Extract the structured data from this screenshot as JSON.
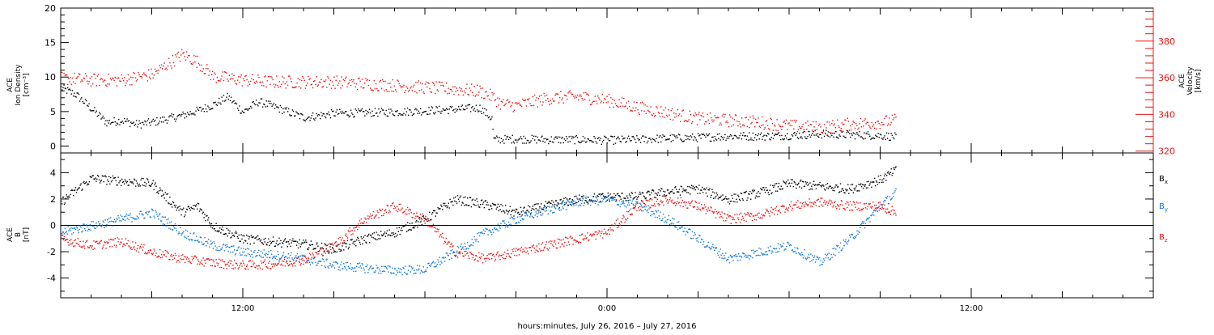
{
  "xaxis": {
    "label": "hours:minutes, July 26, 2016 – July 27, 2016",
    "range_hours": [
      6,
      42
    ],
    "major_ticks": [
      {
        "h": 12,
        "label": "12:00"
      },
      {
        "h": 24,
        "label": "0:00"
      },
      {
        "h": 36,
        "label": "12:00"
      }
    ]
  },
  "colors": {
    "black": "#000000",
    "red": "#ee1111",
    "blue": "#0f78dc"
  },
  "chart_data": [
    {
      "type": "scatter",
      "panel": "top",
      "ylabel_left": [
        "ACE",
        "Ion Density",
        "[cm⁻³]"
      ],
      "ylabel_right": [
        "ACE",
        "Velocity",
        "[km/s]"
      ],
      "y_left_ticks": [
        "0",
        "5",
        "10",
        "15",
        "20"
      ],
      "ylim_left": [
        -1,
        20
      ],
      "y_right_ticks": [
        "320",
        "340",
        "360",
        "380"
      ],
      "ylim_right": [
        319,
        398
      ],
      "series": [
        {
          "key": "density",
          "axis": "left",
          "color": "black",
          "points": [
            [
              6.0,
              8.5
            ],
            [
              6.5,
              7.5
            ],
            [
              7.0,
              5.5
            ],
            [
              7.5,
              3.5
            ],
            [
              8.0,
              3.8
            ],
            [
              8.5,
              3.2
            ],
            [
              9.0,
              3.5
            ],
            [
              9.5,
              4.0
            ],
            [
              10.0,
              4.5
            ],
            [
              10.5,
              5.2
            ],
            [
              11.0,
              6.0
            ],
            [
              11.5,
              7.2
            ],
            [
              12.0,
              5.0
            ],
            [
              12.5,
              6.5
            ],
            [
              13.0,
              5.8
            ],
            [
              13.5,
              5.0
            ],
            [
              14.0,
              4.2
            ],
            [
              14.5,
              4.5
            ],
            [
              15.0,
              4.8
            ],
            [
              16.0,
              4.9
            ],
            [
              17.0,
              5.0
            ],
            [
              18.0,
              5.2
            ],
            [
              19.0,
              5.4
            ],
            [
              19.8,
              5.6
            ],
            [
              20.2,
              4.0
            ],
            [
              20.25,
              1.0
            ],
            [
              21.0,
              1.1
            ],
            [
              22.0,
              1.0
            ],
            [
              23.0,
              1.0
            ],
            [
              24.0,
              0.9
            ],
            [
              25.0,
              1.0
            ],
            [
              26.0,
              1.2
            ],
            [
              27.0,
              1.3
            ],
            [
              28.0,
              1.5
            ],
            [
              29.0,
              1.5
            ],
            [
              30.0,
              1.6
            ],
            [
              31.0,
              1.8
            ],
            [
              32.0,
              1.7
            ],
            [
              33.0,
              1.6
            ],
            [
              33.5,
              1.4
            ]
          ]
        },
        {
          "key": "velocity",
          "axis": "right",
          "color": "red",
          "points": [
            [
              6.0,
              360
            ],
            [
              7.0,
              359
            ],
            [
              8.0,
              359
            ],
            [
              9.0,
              362
            ],
            [
              10.0,
              373
            ],
            [
              10.5,
              369
            ],
            [
              11.0,
              361
            ],
            [
              12.0,
              359
            ],
            [
              13.0,
              358
            ],
            [
              14.0,
              358
            ],
            [
              15.0,
              358
            ],
            [
              16.0,
              357
            ],
            [
              17.0,
              356
            ],
            [
              18.0,
              355
            ],
            [
              19.0,
              354
            ],
            [
              19.8,
              353
            ],
            [
              20.2,
              350
            ],
            [
              20.5,
              346
            ],
            [
              21.0,
              345
            ],
            [
              22.0,
              349
            ],
            [
              23.0,
              350
            ],
            [
              24.0,
              348
            ],
            [
              25.0,
              344
            ],
            [
              26.0,
              341
            ],
            [
              27.0,
              338
            ],
            [
              28.0,
              337
            ],
            [
              29.0,
              336
            ],
            [
              30.0,
              334
            ],
            [
              31.0,
              333
            ],
            [
              32.0,
              335
            ],
            [
              33.0,
              336
            ],
            [
              33.5,
              337
            ]
          ]
        }
      ]
    },
    {
      "type": "scatter",
      "panel": "bottom",
      "ylabel_left": [
        "ACE",
        "B",
        "[nT]"
      ],
      "y_ticks": [
        "-4",
        "-2",
        "0",
        "2",
        "4"
      ],
      "ylim": [
        -5.5,
        5.5
      ],
      "zero_line": true,
      "series": [
        {
          "key": "bx",
          "name": "B",
          "sub": "x",
          "color": "black",
          "points": [
            [
              6.0,
              1.8
            ],
            [
              7.0,
              3.6
            ],
            [
              8.0,
              3.4
            ],
            [
              9.0,
              3.2
            ],
            [
              10.0,
              1.0
            ],
            [
              10.5,
              1.5
            ],
            [
              11.0,
              0.0
            ],
            [
              11.5,
              -0.5
            ],
            [
              12.0,
              -1.0
            ],
            [
              13.0,
              -1.2
            ],
            [
              14.0,
              -1.4
            ],
            [
              15.0,
              -1.8
            ],
            [
              16.0,
              -1.0
            ],
            [
              17.0,
              -0.5
            ],
            [
              18.0,
              0.5
            ],
            [
              19.0,
              2.0
            ],
            [
              20.0,
              1.6
            ],
            [
              21.0,
              1.0
            ],
            [
              22.0,
              1.5
            ],
            [
              23.0,
              2.0
            ],
            [
              24.0,
              2.2
            ],
            [
              25.0,
              2.2
            ],
            [
              26.0,
              2.6
            ],
            [
              27.0,
              2.8
            ],
            [
              28.0,
              2.0
            ],
            [
              29.0,
              2.5
            ],
            [
              30.0,
              3.2
            ],
            [
              31.0,
              3.0
            ],
            [
              32.0,
              2.8
            ],
            [
              33.0,
              3.5
            ],
            [
              33.5,
              4.2
            ]
          ]
        },
        {
          "key": "by",
          "name": "B",
          "sub": "y",
          "color": "blue",
          "points": [
            [
              6.0,
              -0.5
            ],
            [
              7.0,
              0.0
            ],
            [
              8.0,
              0.5
            ],
            [
              9.0,
              1.0
            ],
            [
              10.0,
              -0.5
            ],
            [
              11.0,
              -1.5
            ],
            [
              12.0,
              -2.0
            ],
            [
              13.0,
              -2.2
            ],
            [
              14.0,
              -2.5
            ],
            [
              15.0,
              -3.0
            ],
            [
              16.0,
              -3.2
            ],
            [
              17.0,
              -3.4
            ],
            [
              18.0,
              -3.3
            ],
            [
              19.0,
              -2.0
            ],
            [
              20.0,
              -0.5
            ],
            [
              21.0,
              0.5
            ],
            [
              22.0,
              1.2
            ],
            [
              23.0,
              1.8
            ],
            [
              24.0,
              2.0
            ],
            [
              25.0,
              1.5
            ],
            [
              26.0,
              0.5
            ],
            [
              27.0,
              -1.0
            ],
            [
              28.0,
              -2.5
            ],
            [
              29.0,
              -2.0
            ],
            [
              30.0,
              -1.5
            ],
            [
              31.0,
              -2.8
            ],
            [
              32.0,
              -1.0
            ],
            [
              33.0,
              1.5
            ],
            [
              33.5,
              2.5
            ]
          ]
        },
        {
          "key": "bz",
          "name": "B",
          "sub": "z",
          "color": "red",
          "points": [
            [
              6.0,
              -1.0
            ],
            [
              7.0,
              -1.5
            ],
            [
              8.0,
              -1.2
            ],
            [
              9.0,
              -2.0
            ],
            [
              10.0,
              -2.5
            ],
            [
              11.0,
              -2.8
            ],
            [
              12.0,
              -3.0
            ],
            [
              13.0,
              -2.9
            ],
            [
              14.0,
              -2.6
            ],
            [
              15.0,
              -1.5
            ],
            [
              16.0,
              0.5
            ],
            [
              17.0,
              1.5
            ],
            [
              18.0,
              0.5
            ],
            [
              19.0,
              -2.0
            ],
            [
              20.0,
              -2.5
            ],
            [
              21.0,
              -2.0
            ],
            [
              22.0,
              -1.5
            ],
            [
              23.0,
              -1.0
            ],
            [
              24.0,
              -0.5
            ],
            [
              25.0,
              1.5
            ],
            [
              26.0,
              2.0
            ],
            [
              27.0,
              1.5
            ],
            [
              28.0,
              0.5
            ],
            [
              29.0,
              0.8
            ],
            [
              30.0,
              1.5
            ],
            [
              31.0,
              1.8
            ],
            [
              32.0,
              1.5
            ],
            [
              33.0,
              1.5
            ],
            [
              33.5,
              1.0
            ]
          ]
        }
      ]
    }
  ]
}
